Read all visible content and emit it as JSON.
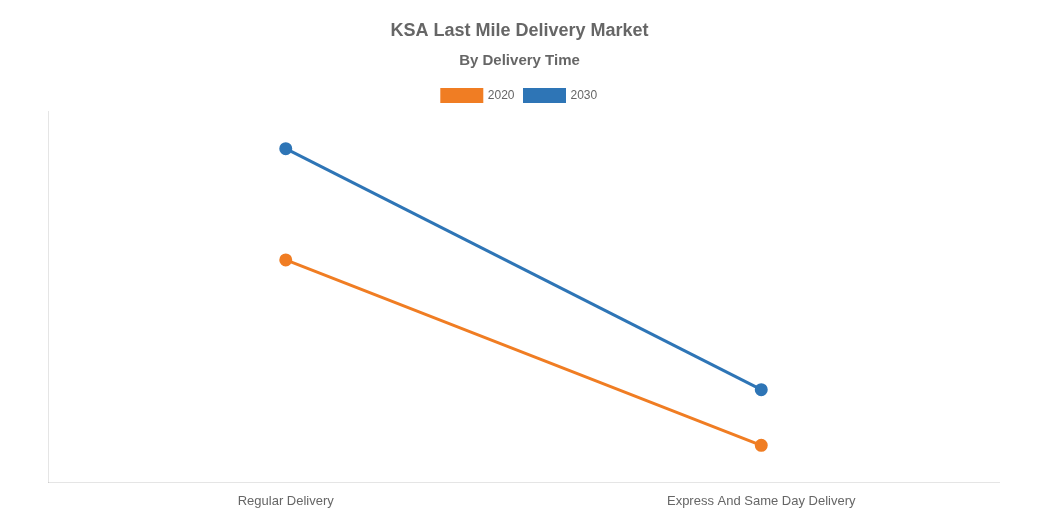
{
  "chart_data": {
    "type": "line",
    "title": "KSA Last Mile Delivery Market",
    "subtitle": "By Delivery Time",
    "categories": [
      "Regular Delivery",
      "Express And Same Day Delivery"
    ],
    "series": [
      {
        "name": "2020",
        "color": "#f07d23",
        "values": [
          60,
          10
        ]
      },
      {
        "name": "2030",
        "color": "#2e75b6",
        "values": [
          90,
          25
        ]
      }
    ],
    "ylim": [
      0,
      100
    ],
    "grid": false,
    "legend": "top",
    "tick_labels": "x",
    "marker": "circle"
  }
}
